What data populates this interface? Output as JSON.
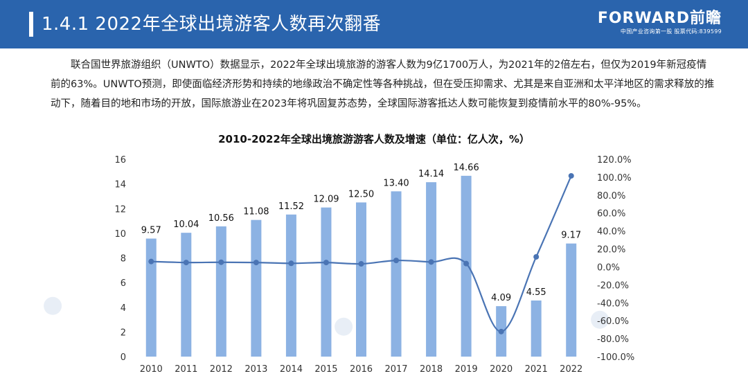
{
  "header": {
    "title": "1.4.1 2022年全球出境游客人数再次翻番",
    "brand_name": "FORWARD前瞻",
    "brand_sub": "中国产业咨询第一股 股票代码:839599"
  },
  "paragraph": "联合国世界旅游组织（UNWTO）数据显示，2022年全球出境旅游的游客人数为9亿1700万人，为2021年的2倍左右，但仅为2019年新冠疫情前的63%。UNWTO预测，即使面临经济形势和持续的地缘政治不确定性等各种挑战，但在受压抑需求、尤其是来自亚洲和太平洋地区的需求释放的推动下，随着目的地和市场的开放，国际旅游业在2023年将巩固复苏态势，全球国际游客抵达人数可能恢复到疫情前水平的80%-95%。",
  "colors": {
    "header_bg": "#2a64ad",
    "bar": "#8cb2e3",
    "line": "#4a74b4",
    "axis_text": "#333333"
  },
  "chart_data": {
    "type": "bar+line",
    "title": "2010-2022年全球出境旅游游客人数及增速（单位：亿人次，%）",
    "categories": [
      "2010",
      "2011",
      "2012",
      "2013",
      "2014",
      "2015",
      "2016",
      "2017",
      "2018",
      "2019",
      "2020",
      "2021",
      "2022"
    ],
    "series": [
      {
        "name": "游客人数",
        "type": "bar",
        "axis": "left",
        "values": [
          9.57,
          10.04,
          10.56,
          11.08,
          11.52,
          12.09,
          12.5,
          13.4,
          14.14,
          14.66,
          4.09,
          4.55,
          9.17
        ],
        "labels": [
          "9.57",
          "10.04",
          "10.56",
          "11.08",
          "11.52",
          "12.09",
          "12.50",
          "13.40",
          "14.14",
          "14.66",
          "4.09",
          "4.55",
          "9.17"
        ]
      },
      {
        "name": "增速",
        "type": "line",
        "axis": "right",
        "values": [
          6.0,
          4.9,
          5.2,
          4.9,
          4.0,
          4.9,
          3.4,
          7.2,
          5.5,
          3.7,
          -72.1,
          11.2,
          101.5
        ]
      }
    ],
    "y_left": {
      "min": 0,
      "max": 16,
      "ticks": [
        "0",
        "2",
        "4",
        "6",
        "8",
        "10",
        "12",
        "14",
        "16"
      ]
    },
    "y_right": {
      "min": -100,
      "max": 120,
      "ticks": [
        "-100.0%",
        "-80.0%",
        "-60.0%",
        "-40.0%",
        "-20.0%",
        "0.0%",
        "20.0%",
        "40.0%",
        "60.0%",
        "80.0%",
        "100.0%",
        "120.0%"
      ]
    },
    "grid": false
  }
}
